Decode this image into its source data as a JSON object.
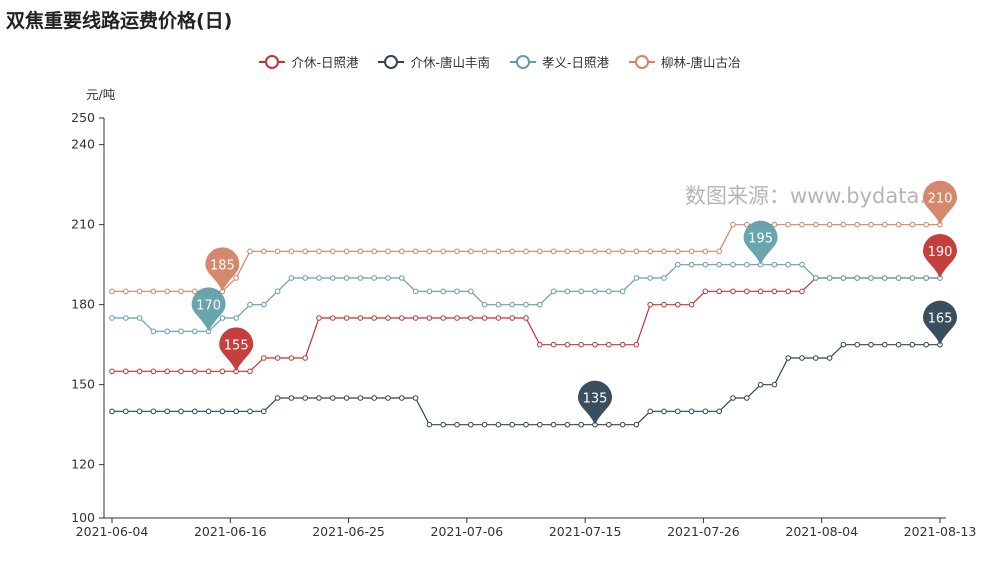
{
  "chart_data": {
    "type": "line",
    "title": "双焦重要线路运费价格(日)",
    "ylabel": "元/吨",
    "ylim": [
      100,
      250
    ],
    "yticks": [
      100,
      120,
      150,
      180,
      210,
      240,
      250
    ],
    "x_tick_labels": [
      "2021-06-04",
      "2021-06-16",
      "2021-06-25",
      "2021-07-06",
      "2021-07-15",
      "2021-07-26",
      "2021-08-04",
      "2021-08-13"
    ],
    "grid": false,
    "legend_position": "top-center",
    "x": [
      "06-03",
      "06-04",
      "06-05",
      "06-07",
      "06-08",
      "06-09",
      "06-10",
      "06-11",
      "06-12",
      "06-14",
      "06-15",
      "06-16",
      "06-17",
      "06-18",
      "06-19",
      "06-21",
      "06-22",
      "06-23",
      "06-24",
      "06-25",
      "06-26",
      "06-28",
      "06-29",
      "06-30",
      "07-01",
      "07-02",
      "07-03",
      "07-05",
      "07-06",
      "07-07",
      "07-08",
      "07-09",
      "07-10",
      "07-12",
      "07-13",
      "07-14",
      "07-15",
      "07-16",
      "07-17",
      "07-19",
      "07-20",
      "07-21",
      "07-22",
      "07-23",
      "07-24",
      "07-26",
      "07-27",
      "07-28",
      "07-29",
      "07-30",
      "07-31",
      "08-02",
      "08-03",
      "08-04",
      "08-05",
      "08-06",
      "08-07",
      "08-09",
      "08-10",
      "08-11",
      "08-12"
    ],
    "series": [
      {
        "name": "介休-日照港",
        "color": "#c23531",
        "values": [
          155,
          155,
          155,
          155,
          155,
          155,
          155,
          155,
          155,
          155,
          155,
          160,
          160,
          160,
          160,
          175,
          175,
          175,
          175,
          175,
          175,
          175,
          175,
          175,
          175,
          175,
          175,
          175,
          175,
          175,
          175,
          165,
          165,
          165,
          165,
          165,
          165,
          165,
          165,
          180,
          180,
          180,
          180,
          185,
          185,
          185,
          185,
          185,
          185,
          185,
          185,
          190,
          190,
          190,
          190,
          190,
          190,
          190,
          190,
          190,
          190
        ],
        "markers": [
          {
            "index": 9,
            "value": 155
          },
          {
            "index": 60,
            "value": 190
          }
        ]
      },
      {
        "name": "介休-唐山丰南",
        "color": "#2f4554",
        "values": [
          140,
          140,
          140,
          140,
          140,
          140,
          140,
          140,
          140,
          140,
          140,
          140,
          145,
          145,
          145,
          145,
          145,
          145,
          145,
          145,
          145,
          145,
          145,
          135,
          135,
          135,
          135,
          135,
          135,
          135,
          135,
          135,
          135,
          135,
          135,
          135,
          135,
          135,
          135,
          140,
          140,
          140,
          140,
          140,
          140,
          145,
          145,
          150,
          150,
          160,
          160,
          160,
          160,
          165,
          165,
          165,
          165,
          165,
          165,
          165,
          165
        ],
        "markers": [
          {
            "index": 35,
            "value": 135
          },
          {
            "index": 60,
            "value": 165
          }
        ]
      },
      {
        "name": "孝义-日照港",
        "color": "#61a0a8",
        "values": [
          175,
          175,
          175,
          170,
          170,
          170,
          170,
          170,
          175,
          175,
          180,
          180,
          185,
          190,
          190,
          190,
          190,
          190,
          190,
          190,
          190,
          190,
          185,
          185,
          185,
          185,
          185,
          180,
          180,
          180,
          180,
          180,
          185,
          185,
          185,
          185,
          185,
          185,
          190,
          190,
          190,
          195,
          195,
          195,
          195,
          195,
          195,
          195,
          195,
          195,
          195,
          190,
          190,
          190,
          190,
          190,
          190,
          190,
          190,
          190,
          190
        ],
        "markers": [
          {
            "index": 7,
            "value": 170
          },
          {
            "index": 47,
            "value": 195
          }
        ]
      },
      {
        "name": "柳林-唐山古冶",
        "color": "#d48265",
        "values": [
          185,
          185,
          185,
          185,
          185,
          185,
          185,
          185,
          185,
          190,
          200,
          200,
          200,
          200,
          200,
          200,
          200,
          200,
          200,
          200,
          200,
          200,
          200,
          200,
          200,
          200,
          200,
          200,
          200,
          200,
          200,
          200,
          200,
          200,
          200,
          200,
          200,
          200,
          200,
          200,
          200,
          200,
          200,
          200,
          200,
          210,
          210,
          210,
          210,
          210,
          210,
          210,
          210,
          210,
          210,
          210,
          210,
          210,
          210,
          210,
          210
        ],
        "markers": [
          {
            "index": 8,
            "value": 185
          },
          {
            "index": 60,
            "value": 210
          }
        ]
      }
    ]
  },
  "watermark": "数图来源：www.bydata.ch"
}
